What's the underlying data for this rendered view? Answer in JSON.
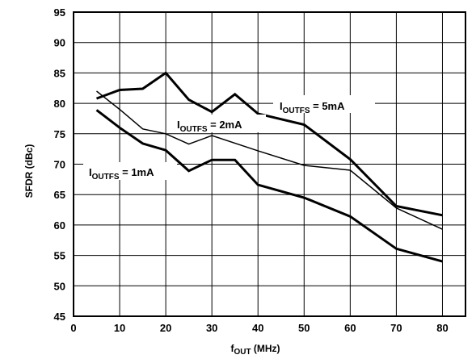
{
  "chart_data": {
    "type": "line",
    "title": "",
    "xlabel": "f",
    "xlabel_sub": "OUT",
    "xlabel_unit": " (MHz)",
    "ylabel": "SFDR (dBc)",
    "xlim": [
      0,
      85
    ],
    "ylim": [
      45,
      95
    ],
    "xticks": [
      0,
      10,
      20,
      30,
      40,
      50,
      60,
      70,
      80
    ],
    "xtick_labels": [
      "0",
      "10",
      "20",
      "30",
      "40",
      "50",
      "60",
      "70",
      "80"
    ],
    "yticks": [
      45,
      50,
      55,
      60,
      65,
      70,
      75,
      80,
      85,
      90,
      95
    ],
    "ytick_labels": [
      "45",
      "50",
      "55",
      "60",
      "65",
      "70",
      "75",
      "80",
      "85",
      "90",
      "95"
    ],
    "grid": true,
    "series": [
      {
        "name": "I",
        "name_sub": "OUTFS",
        "name_suffix": " = 5mA",
        "x": [
          5,
          10,
          15,
          20,
          25,
          30,
          35,
          40,
          50,
          60,
          70,
          80
        ],
        "values": [
          80.8,
          82.2,
          82.4,
          85.0,
          80.6,
          78.6,
          81.5,
          78.3,
          76.5,
          70.8,
          63.1,
          61.6
        ],
        "style": "thick"
      },
      {
        "name": "I",
        "name_sub": "OUTFS",
        "name_suffix": " = 2mA",
        "x": [
          5,
          10,
          15,
          20,
          25,
          30,
          40,
          50,
          60,
          70,
          80
        ],
        "values": [
          82.0,
          79.0,
          75.8,
          75.0,
          73.3,
          74.7,
          72.2,
          69.8,
          69.0,
          62.8,
          59.3
        ],
        "style": "thin"
      },
      {
        "name": "I",
        "name_sub": "OUTFS",
        "name_suffix": " = 1mA",
        "x": [
          5,
          10,
          15,
          20,
          25,
          30,
          35,
          40,
          50,
          60,
          70,
          80
        ],
        "values": [
          78.9,
          76.0,
          73.4,
          72.3,
          68.9,
          70.7,
          70.7,
          66.6,
          64.5,
          61.4,
          56.1,
          54.0
        ],
        "style": "thick"
      }
    ]
  }
}
